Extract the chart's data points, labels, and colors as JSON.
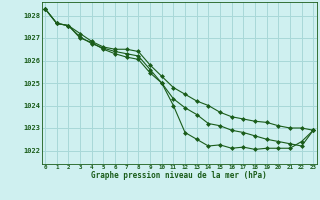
{
  "title": "Graphe pression niveau de la mer (hPa)",
  "bg_color": "#cff0f0",
  "grid_color": "#a8d8d8",
  "line_color": "#1a5c1a",
  "x_ticks": [
    0,
    1,
    2,
    3,
    4,
    5,
    6,
    7,
    8,
    9,
    10,
    11,
    12,
    13,
    14,
    15,
    16,
    17,
    18,
    19,
    20,
    21,
    22,
    23
  ],
  "y_ticks": [
    1022,
    1023,
    1024,
    1025,
    1026,
    1027,
    1028
  ],
  "ylim": [
    1021.4,
    1028.6
  ],
  "xlim": [
    -0.3,
    23.3
  ],
  "series": [
    [
      1028.3,
      1027.65,
      1027.55,
      1027.0,
      1026.8,
      1026.5,
      1026.3,
      1026.15,
      1026.05,
      1025.45,
      1025.0,
      1024.0,
      1022.8,
      1022.5,
      1022.2,
      1022.25,
      1022.1,
      1022.15,
      1022.05,
      1022.1,
      1022.1,
      1022.1,
      1022.4,
      1022.9
    ],
    [
      1028.3,
      1027.65,
      1027.55,
      1027.2,
      1026.85,
      1026.6,
      1026.5,
      1026.5,
      1026.4,
      1025.8,
      1025.3,
      1024.8,
      1024.5,
      1024.2,
      1024.0,
      1023.7,
      1023.5,
      1023.4,
      1023.3,
      1023.25,
      1023.1,
      1023.0,
      1023.0,
      1022.9
    ],
    [
      1028.3,
      1027.65,
      1027.55,
      1027.05,
      1026.75,
      1026.55,
      1026.4,
      1026.3,
      1026.2,
      1025.6,
      1025.0,
      1024.3,
      1023.9,
      1023.6,
      1023.2,
      1023.1,
      1022.9,
      1022.8,
      1022.65,
      1022.5,
      1022.4,
      1022.3,
      1022.2,
      1022.9
    ]
  ]
}
